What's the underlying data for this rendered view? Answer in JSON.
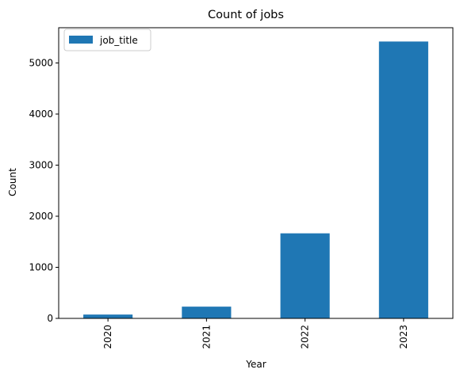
{
  "chart_data": {
    "type": "bar",
    "title": "Count of jobs",
    "xlabel": "Year",
    "ylabel": "Count",
    "categories": [
      "2020",
      "2021",
      "2022",
      "2023"
    ],
    "series": [
      {
        "name": "job_title",
        "values": [
          75,
          230,
          1665,
          5420
        ],
        "color": "#1f77b4"
      }
    ],
    "ylim": [
      0,
      5690
    ],
    "yticks": [
      0,
      1000,
      2000,
      3000,
      4000,
      5000
    ],
    "grid": false,
    "legend_position": "top-left"
  }
}
